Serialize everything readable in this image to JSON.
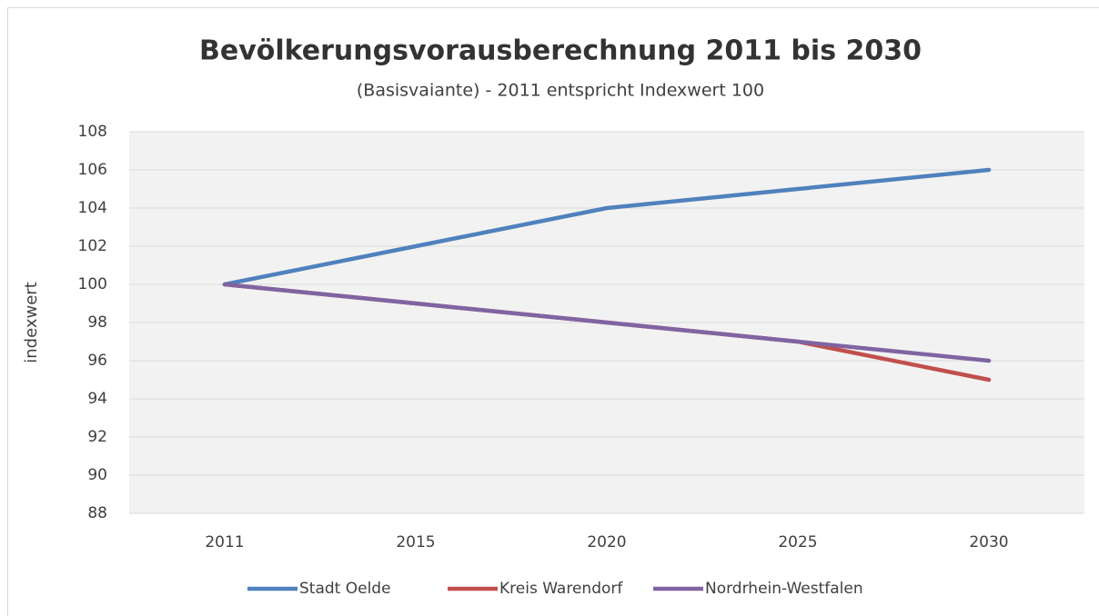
{
  "chart_data": {
    "type": "line",
    "title": "Bevölkerungsvorausberechnung 2011 bis 2030",
    "subtitle": "(Basisvaiante) - 2011 entspricht Indexwert 100",
    "y_label": "indexwert",
    "categories": [
      "2011",
      "2015",
      "2020",
      "2025",
      "2030"
    ],
    "series": [
      {
        "name": "Stadt Oelde",
        "color": "#4f81bd",
        "values": [
          100,
          102,
          104,
          105,
          106
        ]
      },
      {
        "name": "Kreis Warendorf",
        "color": "#c0504d",
        "values": [
          100,
          99,
          98,
          97,
          95
        ]
      },
      {
        "name": "Nordrhein-Westfalen",
        "color": "#8064a2",
        "values": [
          100,
          99,
          98,
          97,
          96
        ]
      }
    ],
    "ylim": [
      88,
      108
    ],
    "yticks": [
      88,
      90,
      92,
      94,
      96,
      98,
      100,
      102,
      104,
      106,
      108
    ],
    "grid": true,
    "legend": "bottom"
  }
}
